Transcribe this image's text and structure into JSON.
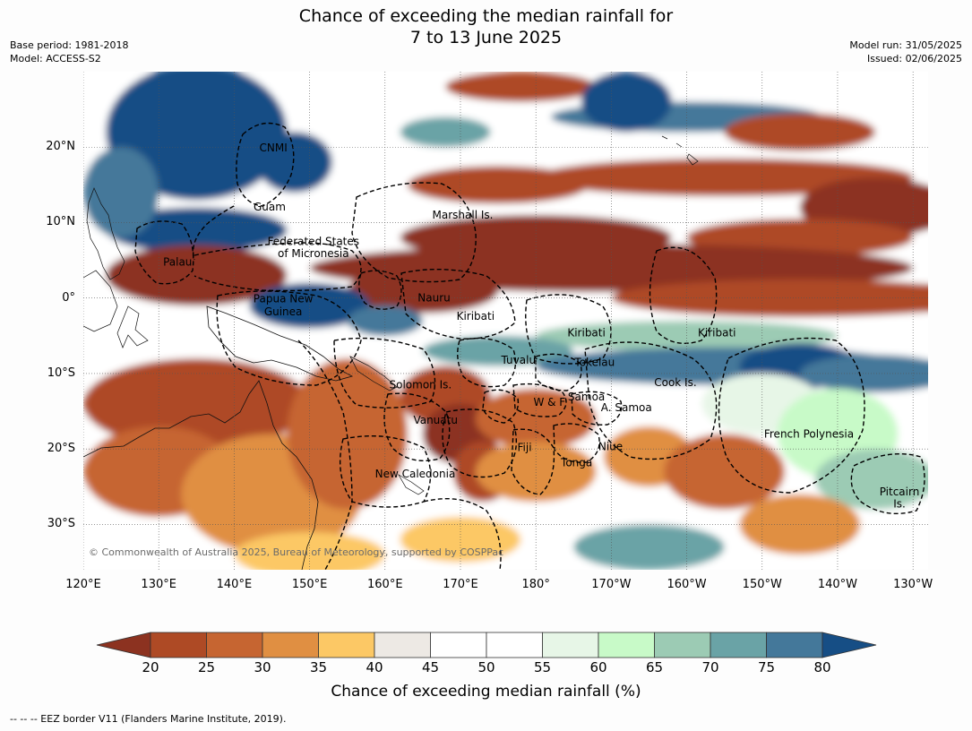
{
  "title": {
    "line1": "Chance of exceeding the median rainfall for",
    "line2": "7 to 13 June 2025"
  },
  "meta": {
    "base_period": "Base period: 1981-2018",
    "model": "Model: ACCESS-S2",
    "model_run": "Model run: 31/05/2025",
    "issued": "Issued: 02/06/2025"
  },
  "map": {
    "lon_range": [
      120,
      232
    ],
    "lat_range": [
      -36,
      30
    ],
    "lat_ticks": [
      {
        "label": "20°N",
        "lat": 20
      },
      {
        "label": "10°N",
        "lat": 10
      },
      {
        "label": "0°",
        "lat": 0
      },
      {
        "label": "10°S",
        "lat": -10
      },
      {
        "label": "20°S",
        "lat": -20
      },
      {
        "label": "30°S",
        "lat": -30
      }
    ],
    "lon_ticks": [
      {
        "label": "120°E",
        "lon": 120
      },
      {
        "label": "130°E",
        "lon": 130
      },
      {
        "label": "140°E",
        "lon": 140
      },
      {
        "label": "150°E",
        "lon": 150
      },
      {
        "label": "160°E",
        "lon": 160
      },
      {
        "label": "170°E",
        "lon": 170
      },
      {
        "label": "180°",
        "lon": 180
      },
      {
        "label": "170°W",
        "lon": 190
      },
      {
        "label": "160°W",
        "lon": 200
      },
      {
        "label": "150°W",
        "lon": 210
      },
      {
        "label": "140°W",
        "lon": 220
      },
      {
        "label": "130°W",
        "lon": 230
      }
    ],
    "places": [
      {
        "name": "CNMI",
        "lon": 145.2,
        "lat": 19.9
      },
      {
        "name": "Guam",
        "lon": 144.7,
        "lat": 12.1
      },
      {
        "name": "Marshall Is.",
        "lon": 170.3,
        "lat": 11.0
      },
      {
        "name": "Federated States",
        "lon": 150.5,
        "lat": 7.5
      },
      {
        "name": "of Micronesia",
        "lon": 150.5,
        "lat": 5.9
      },
      {
        "name": "Palau",
        "lon": 132.5,
        "lat": 4.8
      },
      {
        "name": "Papua New",
        "lon": 146.5,
        "lat": -0.1
      },
      {
        "name": "Guinea",
        "lon": 146.5,
        "lat": -1.8
      },
      {
        "name": "Nauru",
        "lon": 166.5,
        "lat": 0.0
      },
      {
        "name": "Kiribati",
        "lon": 172.0,
        "lat": -2.4
      },
      {
        "name": "Kiribati",
        "lon": 186.7,
        "lat": -4.6
      },
      {
        "name": "Kiribati",
        "lon": 204.0,
        "lat": -4.6
      },
      {
        "name": "Tuvalu",
        "lon": 177.7,
        "lat": -8.2
      },
      {
        "name": "Tokelau",
        "lon": 187.8,
        "lat": -8.5
      },
      {
        "name": "Cook Is.",
        "lon": 198.5,
        "lat": -11.2
      },
      {
        "name": "Solomon Is.",
        "lon": 164.7,
        "lat": -11.5
      },
      {
        "name": "Samoa",
        "lon": 186.7,
        "lat": -13.1
      },
      {
        "name": "W & F",
        "lon": 181.8,
        "lat": -13.8
      },
      {
        "name": "A. Samoa",
        "lon": 192.0,
        "lat": -14.5
      },
      {
        "name": "Vanuatu",
        "lon": 166.7,
        "lat": -16.2
      },
      {
        "name": "French Polynesia",
        "lon": 216.2,
        "lat": -18.0
      },
      {
        "name": "Fiji",
        "lon": 178.5,
        "lat": -19.8
      },
      {
        "name": "Niue",
        "lon": 189.9,
        "lat": -19.7
      },
      {
        "name": "Tonga",
        "lon": 185.4,
        "lat": -21.8
      },
      {
        "name": "New Caledonia",
        "lon": 164.0,
        "lat": -23.3
      },
      {
        "name": "Pitcairn",
        "lon": 228.2,
        "lat": -25.7
      },
      {
        "name": "Is.",
        "lon": 228.2,
        "lat": -27.3
      }
    ],
    "copyright": "© Commonwealth of Australia 2025, Bureau of Meteorology, supported by COSPPac"
  },
  "colorbar": {
    "levels": [
      20,
      25,
      30,
      35,
      40,
      45,
      50,
      55,
      60,
      65,
      70,
      75,
      80
    ],
    "under_color": "#8c3220",
    "over_color": "#164e85",
    "colors": [
      "#ae4a25",
      "#c66531",
      "#e08f42",
      "#fcc865",
      "#ede9e4",
      "#ffffff",
      "#ffffff",
      "#e7f6e7",
      "#c8fac8",
      "#9ccbb4",
      "#6aa3a6",
      "#44789a"
    ],
    "label": "Chance of exceeding median rainfall (%)"
  },
  "footnote": "--  --  -- EEZ border V11 (Flanders Marine Institute, 2019)."
}
